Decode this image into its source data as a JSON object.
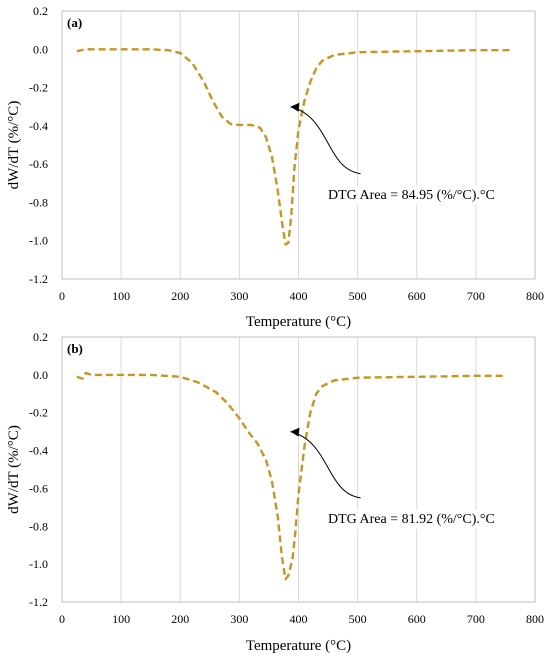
{
  "chart_data": [
    {
      "type": "line",
      "panel_label": "(a)",
      "xlabel": "Temperature (°C)",
      "ylabel": "dW/dT (%/°C)",
      "xlim": [
        0,
        800
      ],
      "ylim": [
        -1.2,
        0.2
      ],
      "x_ticks": [
        "0",
        "100",
        "200",
        "300",
        "400",
        "500",
        "600",
        "700",
        "800"
      ],
      "y_ticks": [
        "0.2",
        "0.0",
        "-0.2",
        "-0.4",
        "-0.6",
        "-0.8",
        "-1.0",
        "-1.2"
      ],
      "grid": "vertical",
      "line_color": "#c8961e",
      "line_style": "dashed",
      "annotation": "DTG Area = 84.95 (%/°C).°C",
      "series": [
        {
          "x": [
            25,
            40,
            60,
            100,
            150,
            180,
            200,
            220,
            240,
            255,
            270,
            285,
            300,
            320,
            335,
            345,
            355,
            365,
            372,
            378,
            383,
            388,
            393,
            400,
            410,
            420,
            430,
            440,
            460,
            500,
            600,
            700,
            760
          ],
          "values": [
            -0.01,
            0.0,
            0.0,
            0.0,
            0.0,
            -0.005,
            -0.02,
            -0.07,
            -0.17,
            -0.27,
            -0.35,
            -0.39,
            -0.395,
            -0.395,
            -0.41,
            -0.46,
            -0.56,
            -0.74,
            -0.9,
            -1.02,
            -1.01,
            -0.86,
            -0.62,
            -0.42,
            -0.27,
            -0.17,
            -0.1,
            -0.06,
            -0.03,
            -0.015,
            -0.01,
            -0.005,
            -0.005
          ]
        }
      ]
    },
    {
      "type": "line",
      "panel_label": "(b)",
      "xlabel": "Temperature (°C)",
      "ylabel": "dW/dT (%/°C)",
      "xlim": [
        0,
        800
      ],
      "ylim": [
        -1.2,
        0.2
      ],
      "x_ticks": [
        "0",
        "100",
        "200",
        "300",
        "400",
        "500",
        "600",
        "700",
        "800"
      ],
      "y_ticks": [
        "0.2",
        "0.0",
        "-0.2",
        "-0.4",
        "-0.6",
        "-0.8",
        "-1.0",
        "-1.2"
      ],
      "grid": "vertical",
      "line_color": "#c8961e",
      "line_style": "dashed",
      "annotation": "DTG Area = 81.92 (%/°C).°C",
      "series": [
        {
          "x": [
            25,
            35,
            40,
            50,
            100,
            150,
            200,
            230,
            260,
            280,
            300,
            315,
            330,
            345,
            355,
            365,
            372,
            378,
            383,
            390,
            395,
            400,
            410,
            420,
            430,
            440,
            460,
            500,
            600,
            700,
            750
          ],
          "values": [
            -0.01,
            -0.02,
            0.01,
            0.0,
            0.0,
            0.0,
            -0.01,
            -0.04,
            -0.09,
            -0.15,
            -0.23,
            -0.3,
            -0.36,
            -0.45,
            -0.56,
            -0.75,
            -0.96,
            -1.08,
            -1.06,
            -0.97,
            -0.82,
            -0.63,
            -0.38,
            -0.2,
            -0.1,
            -0.06,
            -0.03,
            -0.015,
            -0.01,
            -0.005,
            -0.005
          ]
        }
      ]
    }
  ]
}
